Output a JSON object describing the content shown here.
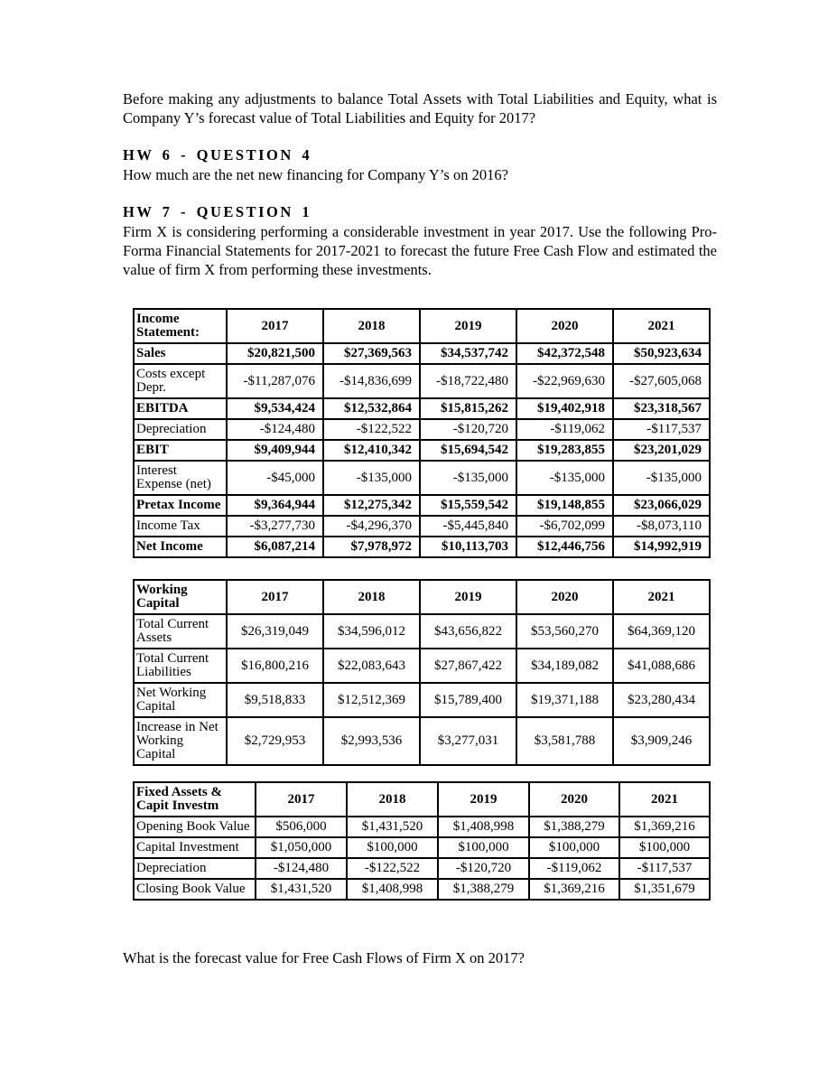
{
  "texts": {
    "intro_question": "Before making any adjustments to balance Total Assets with Total Liabilities and Equity, what is Company Y’s forecast value of Total Liabilities and Equity for 2017?",
    "hw6_heading": "HW 6 - QUESTION 4",
    "hw6_question": "How much are the net new financing for Company Y’s on 2016?",
    "hw7_heading": "HW 7 - QUESTION 1",
    "hw7_intro": "Firm X is considering performing a considerable investment in year 2017. Use the following Pro-Forma Financial Statements for 2017-2021 to forecast the future Free Cash Flow and estimated the value of firm X from performing these investments.",
    "final_question": "What is the forecast value for Free Cash Flows of Firm X on 2017?"
  },
  "tables": [
    {
      "title": "Income Statement:",
      "years": [
        "2017",
        "2018",
        "2019",
        "2020",
        "2021"
      ],
      "rows": [
        {
          "label": "Sales",
          "bold": true,
          "values": [
            "$20,821,500",
            "$27,369,563",
            "$34,537,742",
            "$42,372,548",
            "$50,923,634"
          ]
        },
        {
          "label": "Costs except Depr.",
          "bold": false,
          "values": [
            "-$11,287,076",
            "-$14,836,699",
            "-$18,722,480",
            "-$22,969,630",
            "-$27,605,068"
          ]
        },
        {
          "label": "EBITDA",
          "bold": true,
          "values": [
            "$9,534,424",
            "$12,532,864",
            "$15,815,262",
            "$19,402,918",
            "$23,318,567"
          ]
        },
        {
          "label": "Depreciation",
          "bold": false,
          "values": [
            "-$124,480",
            "-$122,522",
            "-$120,720",
            "-$119,062",
            "-$117,537"
          ]
        },
        {
          "label": "EBIT",
          "bold": true,
          "values": [
            "$9,409,944",
            "$12,410,342",
            "$15,694,542",
            "$19,283,855",
            "$23,201,029"
          ]
        },
        {
          "label": "Interest Expense (net)",
          "bold": false,
          "values": [
            "-$45,000",
            "-$135,000",
            "-$135,000",
            "-$135,000",
            "-$135,000"
          ]
        },
        {
          "label": "Pretax Income",
          "bold": true,
          "values": [
            "$9,364,944",
            "$12,275,342",
            "$15,559,542",
            "$19,148,855",
            "$23,066,029"
          ]
        },
        {
          "label": "Income Tax",
          "bold": false,
          "values": [
            "-$3,277,730",
            "-$4,296,370",
            "-$5,445,840",
            "-$6,702,099",
            "-$8,073,110"
          ]
        },
        {
          "label": "Net Income",
          "bold": true,
          "values": [
            "$6,087,214",
            "$7,978,972",
            "$10,113,703",
            "$12,446,756",
            "$14,992,919"
          ]
        }
      ]
    },
    {
      "title": "Working Capital",
      "years": [
        "2017",
        "2018",
        "2019",
        "2020",
        "2021"
      ],
      "rows": [
        {
          "label": "Total Current Assets",
          "bold": false,
          "values": [
            "$26,319,049",
            "$34,596,012",
            "$43,656,822",
            "$53,560,270",
            "$64,369,120"
          ]
        },
        {
          "label": "Total Current Liabilities",
          "bold": false,
          "values": [
            "$16,800,216",
            "$22,083,643",
            "$27,867,422",
            "$34,189,082",
            "$41,088,686"
          ]
        },
        {
          "label": "Net Working Capital",
          "bold": false,
          "values": [
            "$9,518,833",
            "$12,512,369",
            "$15,789,400",
            "$19,371,188",
            "$23,280,434"
          ]
        },
        {
          "label": "Increase in Net Working Capital",
          "bold": false,
          "values": [
            "$2,729,953",
            "$2,993,536",
            "$3,277,031",
            "$3,581,788",
            "$3,909,246"
          ]
        }
      ]
    },
    {
      "title": "Fixed Assets & Capit Investm",
      "years": [
        "2017",
        "2018",
        "2019",
        "2020",
        "2021"
      ],
      "rows": [
        {
          "label": "Opening Book Value",
          "bold": false,
          "values": [
            "$506,000",
            "$1,431,520",
            "$1,408,998",
            "$1,388,279",
            "$1,369,216"
          ]
        },
        {
          "label": "Capital Investment",
          "bold": false,
          "values": [
            "$1,050,000",
            "$100,000",
            "$100,000",
            "$100,000",
            "$100,000"
          ]
        },
        {
          "label": "Depreciation",
          "bold": false,
          "values": [
            "-$124,480",
            "-$122,522",
            "-$120,720",
            "-$119,062",
            "-$117,537"
          ]
        },
        {
          "label": "Closing Book Value",
          "bold": false,
          "values": [
            "$1,431,520",
            "$1,408,998",
            "$1,388,279",
            "$1,369,216",
            "$1,351,679"
          ]
        }
      ]
    }
  ]
}
